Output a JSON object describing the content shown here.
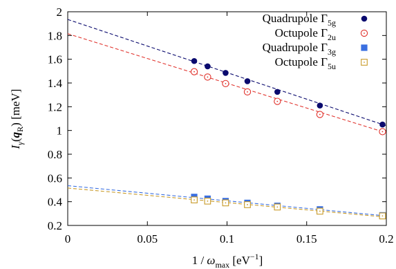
{
  "chart_data": {
    "type": "scatter",
    "xlabel": {
      "text": "1 / ",
      "symbol": "ω",
      "sub": "max",
      "unit_open": " [eV",
      "sup": "−1",
      "unit_close": "]"
    },
    "ylabel": {
      "symbol": "I",
      "sub1": "γ",
      "open": "(",
      "bold": "q",
      "sub2": "R",
      "close": ")",
      "unit": " [meV]"
    },
    "xlim": [
      0,
      0.2
    ],
    "ylim": [
      0.2,
      2
    ],
    "xticks": [
      "0",
      "0.05",
      "0.1",
      "0.15",
      "0.2"
    ],
    "yticks": [
      "0.2",
      "0.4",
      "0.6",
      "0.8",
      "1",
      "1.2",
      "1.4",
      "1.6",
      "1.8",
      "2"
    ],
    "xtick_values": [
      0,
      0.05,
      0.1,
      0.15,
      0.2
    ],
    "ytick_values": [
      0.2,
      0.4,
      0.6,
      0.8,
      1.0,
      1.2,
      1.4,
      1.6,
      1.8,
      2.0
    ],
    "legend_position": "top-right",
    "series": [
      {
        "name": "Quadrupole Γ5g",
        "name_text": "Quadrupole Γ",
        "name_sub": "5g",
        "marker": "filled-circle",
        "color": "#0a0a6e",
        "x": [
          0.0794,
          0.0878,
          0.0991,
          0.1128,
          0.1316,
          0.1583,
          0.1976
        ],
        "y": [
          1.585,
          1.54,
          1.485,
          1.415,
          1.325,
          1.21,
          1.05
        ],
        "fit": [
          [
            0,
            1.935
          ],
          [
            0.2,
            1.04
          ]
        ]
      },
      {
        "name": "Octupole Γ2u",
        "name_text": "Octupole Γ",
        "name_sub": "2u",
        "marker": "open-circle-dot",
        "color": "#e0302a",
        "x": [
          0.0794,
          0.0878,
          0.0991,
          0.1128,
          0.1316,
          0.1583,
          0.1976
        ],
        "y": [
          1.495,
          1.45,
          1.395,
          1.325,
          1.245,
          1.135,
          0.99
        ],
        "fit": [
          [
            0,
            1.815
          ],
          [
            0.2,
            0.98
          ]
        ]
      },
      {
        "name": "Quadrupole Γ3g",
        "name_text": "Quadrupole Γ",
        "name_sub": "3g",
        "marker": "filled-square",
        "color": "#3a6fe0",
        "x": [
          0.0794,
          0.0878,
          0.0991,
          0.1128,
          0.1316,
          0.1583,
          0.1976
        ],
        "y": [
          0.44,
          0.425,
          0.405,
          0.39,
          0.365,
          0.335,
          0.285
        ],
        "fit": [
          [
            0,
            0.535
          ],
          [
            0.2,
            0.28
          ]
        ]
      },
      {
        "name": "Octupole Γ5u",
        "name_text": "Octupole Γ",
        "name_sub": "5u",
        "marker": "open-square-dot",
        "color": "#c89a28",
        "x": [
          0.0794,
          0.0878,
          0.0991,
          0.1128,
          0.1316,
          0.1583,
          0.1976
        ],
        "y": [
          0.415,
          0.405,
          0.39,
          0.375,
          0.355,
          0.32,
          0.28
        ],
        "fit": [
          [
            0,
            0.515
          ],
          [
            0.2,
            0.27
          ]
        ]
      }
    ]
  }
}
